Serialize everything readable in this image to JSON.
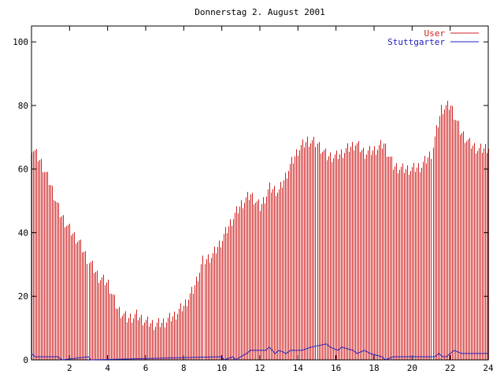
{
  "chart_data": {
    "type": "area",
    "title": "Donnerstag 2. August 2001",
    "xlabel": "",
    "ylabel": "",
    "xlim": [
      0,
      24
    ],
    "ylim": [
      0,
      105
    ],
    "x_ticks": [
      "2",
      "4",
      "6",
      "8",
      "10",
      "12",
      "14",
      "16",
      "18",
      "20",
      "22",
      "24"
    ],
    "y_ticks": [
      "0",
      "20",
      "40",
      "60",
      "80",
      "100"
    ],
    "grid": false,
    "legend_position": "top-right",
    "series": [
      {
        "name": "User",
        "style": "impulses",
        "color": "#d02020",
        "x": [
          0,
          0.5,
          1,
          1.5,
          2,
          2.5,
          3,
          3.5,
          4,
          4.5,
          5,
          5.5,
          6,
          6.5,
          7,
          7.5,
          8,
          8.5,
          9,
          9.5,
          10,
          10.5,
          11,
          11.5,
          12,
          12.5,
          13,
          13.5,
          14,
          14.5,
          15,
          15.5,
          16,
          16.5,
          17,
          17.5,
          18,
          18.5,
          19,
          19.5,
          20,
          20.5,
          21,
          21.5,
          22,
          22.5,
          23,
          23.5,
          24
        ],
        "values": [
          67,
          62,
          55,
          46,
          41,
          37,
          31,
          26,
          24,
          16,
          13,
          14,
          12,
          11,
          12,
          14,
          17,
          22,
          31,
          33,
          38,
          44,
          49,
          52,
          48,
          54,
          53,
          60,
          66,
          69,
          68,
          64,
          64,
          66,
          68,
          65,
          66,
          68,
          61,
          60,
          60,
          61,
          65,
          79,
          80,
          72,
          68,
          66,
          67
        ]
      },
      {
        "name": "Stuttgarter",
        "style": "line",
        "color": "#2020c0",
        "x": [
          0,
          0.2,
          1.4,
          1.6,
          3,
          3.1,
          10,
          10.1,
          10.6,
          10.7,
          11.3,
          11.5,
          12.3,
          12.5,
          12.8,
          13,
          13.4,
          13.6,
          14.2,
          14.7,
          15.5,
          15.7,
          16.1,
          16.3,
          16.9,
          17.1,
          17.5,
          17.8,
          18.4,
          18.6,
          19,
          19.1,
          21.2,
          21.4,
          21.6,
          21.8,
          22.2,
          22.6,
          24
        ],
        "values": [
          2,
          1,
          1,
          0,
          1,
          0,
          1,
          0,
          1,
          0,
          2,
          3,
          3,
          4,
          2,
          3,
          2,
          3,
          3,
          4,
          5,
          4,
          3,
          4,
          3,
          2,
          3,
          2,
          1,
          0,
          1,
          1,
          1,
          2,
          1,
          1,
          3,
          2,
          2
        ]
      }
    ]
  }
}
